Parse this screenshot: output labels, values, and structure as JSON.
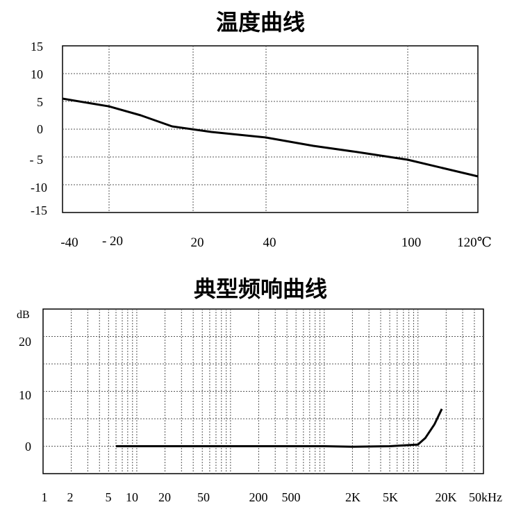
{
  "charts": {
    "temperature": {
      "title": "温度曲线",
      "x_ticks": [
        "-40",
        "- 20",
        "20",
        "40",
        "100",
        "120℃"
      ],
      "y_ticks": [
        "15",
        "10",
        "5",
        "0",
        "- 5",
        "-10",
        "-15"
      ]
    },
    "frequency": {
      "title": "典型频响曲线",
      "y_unit": "dB",
      "x_ticks": [
        "1",
        "2",
        "5",
        "10",
        "20",
        "50",
        "200",
        "500",
        "2K",
        "5K",
        "20K",
        "50kHz"
      ],
      "y_ticks": [
        "20",
        "10",
        "0"
      ]
    }
  },
  "chart_data": [
    {
      "type": "line",
      "title": "温度曲线",
      "xlabel": "",
      "ylabel": "",
      "xlim": [
        -40,
        120
      ],
      "ylim": [
        -15,
        15
      ],
      "x_tick_labels": [
        "-40",
        "- 20",
        "20",
        "40",
        "100",
        "120℃"
      ],
      "y_tick_labels": [
        "15",
        "10",
        "5",
        "0",
        "- 5",
        "-10",
        "-15"
      ],
      "grid": true,
      "series": [
        {
          "x": [
            -40,
            -20,
            -5,
            10,
            25,
            40,
            60,
            80,
            100,
            110,
            120
          ],
          "y": [
            5.5,
            4.1,
            2.5,
            0.5,
            -0.5,
            -1.5,
            -3.0,
            -4.2,
            -5.5,
            -7.0,
            -8.5
          ]
        }
      ]
    },
    {
      "type": "line",
      "title": "典型频响曲线",
      "xlabel": "",
      "ylabel": "dB",
      "x_scale": "log",
      "xlim": [
        1,
        50000
      ],
      "ylim": [
        -5,
        25
      ],
      "x_tick_labels": [
        "1",
        "2",
        "5",
        "10",
        "20",
        "50",
        "200",
        "500",
        "2K",
        "5K",
        "20K",
        "50kHz"
      ],
      "y_tick_labels": [
        "20",
        "10",
        "0"
      ],
      "grid": true,
      "series": [
        {
          "x": [
            6,
            10,
            100,
            1000,
            2000,
            5000,
            10000,
            12000,
            15000,
            18000
          ],
          "y": [
            0,
            0,
            0,
            0,
            -0.1,
            0,
            0.3,
            1.5,
            4.0,
            6.8
          ]
        }
      ]
    }
  ]
}
